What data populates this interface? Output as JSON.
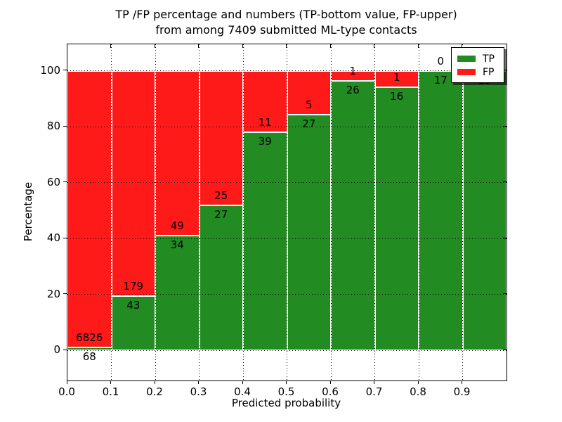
{
  "title": {
    "line1": "TP /FP percentage and numbers (TP-bottom value, FP-upper)",
    "line2": "from among 7409 submitted ML-type contacts"
  },
  "axes": {
    "xlabel": "Predicted probability",
    "ylabel": "Percentage",
    "x_ticks": [
      "0.0",
      "0.1",
      "0.2",
      "0.3",
      "0.4",
      "0.5",
      "0.6",
      "0.7",
      "0.8",
      "0.9"
    ],
    "y_ticks": [
      "0",
      "20",
      "40",
      "60",
      "80",
      "100"
    ]
  },
  "legend": {
    "items": [
      {
        "label": "TP",
        "color": "#228b22"
      },
      {
        "label": "FP",
        "color": "#ff1a1a"
      }
    ]
  },
  "colors": {
    "tp": "#228b22",
    "fp": "#ff1a1a",
    "grid": "#000000"
  },
  "chart_data": {
    "type": "bar",
    "stacked": true,
    "percent_normalized": true,
    "title": "TP /FP percentage and numbers (TP-bottom value, FP-upper) from among 7409 submitted ML-type contacts",
    "xlabel": "Predicted probability",
    "ylabel": "Percentage",
    "xlim": [
      0.0,
      1.0
    ],
    "ylim": [
      -10.8,
      109.4
    ],
    "grid": "dotted",
    "legend_position": "upper right",
    "bin_width": 0.1,
    "categories": [
      "0.0-0.1",
      "0.1-0.2",
      "0.2-0.3",
      "0.3-0.4",
      "0.4-0.5",
      "0.5-0.6",
      "0.6-0.7",
      "0.7-0.8",
      "0.8-0.9",
      "0.9-1.0"
    ],
    "series": [
      {
        "name": "TP",
        "color": "#228b22",
        "values": [
          68,
          43,
          34,
          27,
          39,
          27,
          26,
          16,
          17,
          15
        ]
      },
      {
        "name": "FP",
        "color": "#ff1a1a",
        "values": [
          6826,
          179,
          49,
          25,
          11,
          5,
          1,
          1,
          0,
          0
        ]
      }
    ],
    "tp_percent_of_bin": [
      0.99,
      19.37,
      40.96,
      51.92,
      78.0,
      84.38,
      96.3,
      94.12,
      100.0,
      100.0
    ],
    "visible_bar_labels": {
      "tp": [
        "68",
        "43",
        "34",
        "27",
        "39",
        "27",
        "26",
        "16",
        "17",
        "15"
      ],
      "fp": [
        "6826",
        "179",
        "49",
        "25",
        "11",
        "5",
        "1",
        "1",
        "0",
        ""
      ]
    }
  }
}
